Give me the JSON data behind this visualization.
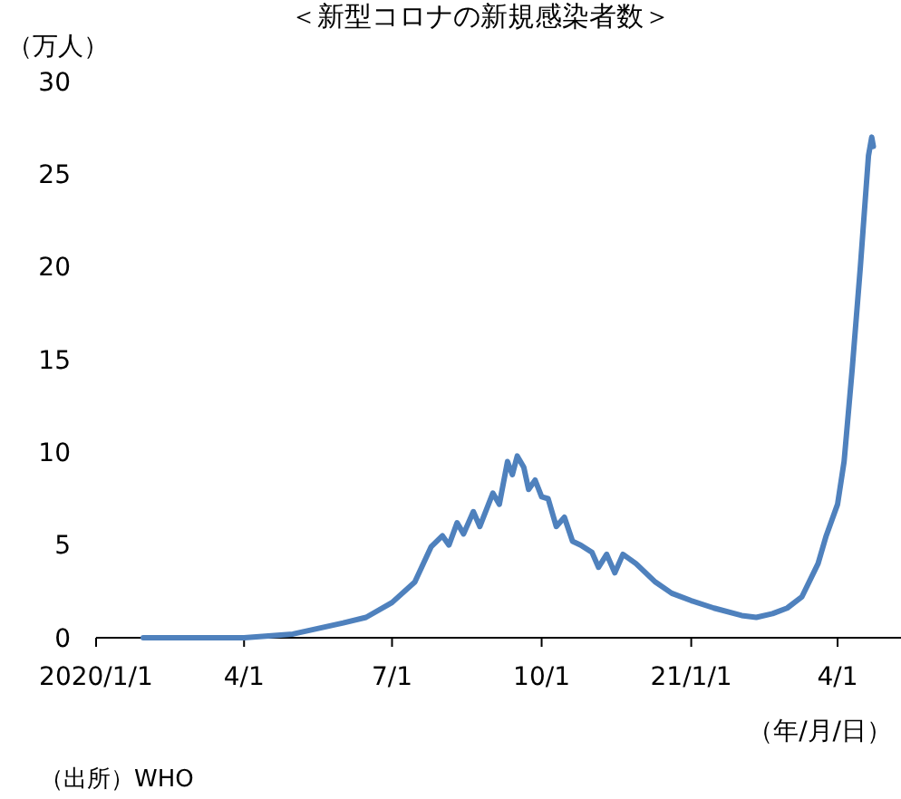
{
  "chart_data": {
    "type": "line",
    "title": "＜新型コロナの新規感染者数＞",
    "ylabel": "（万人）",
    "xlabel": "（年/月/日）",
    "annotations": [
      "（出所）WHO"
    ],
    "x": [
      "2020-01-30",
      "2020-03-01",
      "2020-04-01",
      "2020-05-01",
      "2020-06-01",
      "2020-06-15",
      "2020-07-01",
      "2020-07-15",
      "2020-07-25",
      "2020-08-01",
      "2020-08-05",
      "2020-08-10",
      "2020-08-14",
      "2020-08-20",
      "2020-08-24",
      "2020-09-01",
      "2020-09-05",
      "2020-09-10",
      "2020-09-13",
      "2020-09-16",
      "2020-09-20",
      "2020-09-23",
      "2020-09-27",
      "2020-10-01",
      "2020-10-05",
      "2020-10-10",
      "2020-10-15",
      "2020-10-20",
      "2020-10-25",
      "2020-11-01",
      "2020-11-05",
      "2020-11-10",
      "2020-11-15",
      "2020-11-20",
      "2020-11-28",
      "2020-12-10",
      "2020-12-20",
      "2021-01-01",
      "2021-01-15",
      "2021-02-01",
      "2021-02-10",
      "2021-02-20",
      "2021-03-01",
      "2021-03-10",
      "2021-03-20",
      "2021-03-25",
      "2021-04-01",
      "2021-04-05",
      "2021-04-10",
      "2021-04-15",
      "2021-04-20",
      "2021-04-22",
      "2021-04-23"
    ],
    "series": [
      {
        "color": "#4f81bd",
        "values": [
          0,
          0,
          0,
          0.2,
          0.8,
          1.1,
          1.9,
          3.0,
          4.9,
          5.5,
          5.0,
          6.2,
          5.6,
          6.8,
          6.0,
          7.8,
          7.2,
          9.5,
          8.8,
          9.8,
          9.2,
          8.0,
          8.5,
          7.6,
          7.5,
          6.0,
          6.5,
          5.2,
          5.0,
          4.6,
          3.8,
          4.5,
          3.5,
          4.5,
          4.0,
          3.0,
          2.4,
          2.0,
          1.6,
          1.2,
          1.1,
          1.3,
          1.6,
          2.2,
          4.0,
          5.5,
          7.2,
          9.5,
          14.5,
          20,
          26,
          27,
          26.5
        ]
      }
    ],
    "xlim": [
      "2020-01-01",
      "2021-05-10"
    ],
    "xticks": [
      {
        "value": "2020-01-01",
        "label": "2020/1/1"
      },
      {
        "value": "2020-04-01",
        "label": "4/1"
      },
      {
        "value": "2020-07-01",
        "label": "7/1"
      },
      {
        "value": "2020-10-01",
        "label": "10/1"
      },
      {
        "value": "2021-01-01",
        "label": "21/1/1"
      },
      {
        "value": "2021-04-01",
        "label": "4/1"
      }
    ],
    "ylim": [
      0,
      30
    ],
    "yticks": [
      0,
      5,
      10,
      15,
      20,
      25,
      30
    ],
    "grid": false
  }
}
